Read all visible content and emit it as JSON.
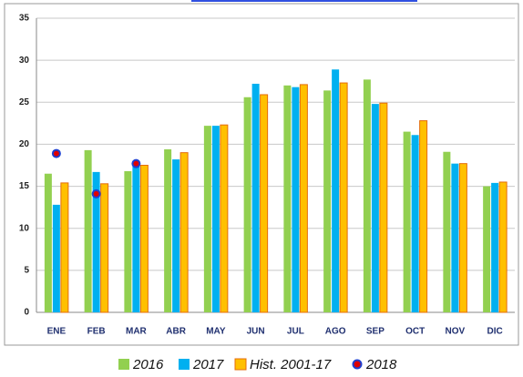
{
  "chart_data": {
    "type": "bar",
    "categories": [
      "ENE",
      "FEB",
      "MAR",
      "ABR",
      "MAY",
      "JUN",
      "JUL",
      "AGO",
      "SEP",
      "OCT",
      "NOV",
      "DIC"
    ],
    "series": [
      {
        "name": "2016",
        "color": "#92d050",
        "values": [
          16.5,
          19.3,
          16.8,
          19.4,
          22.2,
          25.6,
          27.0,
          26.4,
          27.7,
          21.5,
          19.1,
          15.0
        ]
      },
      {
        "name": "2017",
        "color": "#00b0f0",
        "values": [
          12.8,
          16.7,
          17.6,
          18.2,
          22.2,
          27.2,
          26.8,
          28.9,
          24.8,
          21.1,
          17.7,
          15.4
        ]
      },
      {
        "name": "Hist. 2001-17",
        "color": "#ffc000",
        "edgecolor": "#e46c0a",
        "values": [
          15.4,
          15.3,
          17.5,
          19.0,
          22.3,
          25.9,
          27.1,
          27.3,
          24.9,
          22.8,
          17.7,
          15.5
        ]
      },
      {
        "name": "2018",
        "type": "scatter",
        "color": "#e00000",
        "edgecolor": "#1f3fd0",
        "values": [
          18.9,
          14.1,
          17.7,
          null,
          null,
          null,
          null,
          null,
          null,
          null,
          null,
          null
        ]
      }
    ],
    "ylim": [
      0,
      35
    ],
    "yticks": [
      0,
      5,
      10,
      15,
      20,
      25,
      30,
      35
    ],
    "grid": true
  }
}
